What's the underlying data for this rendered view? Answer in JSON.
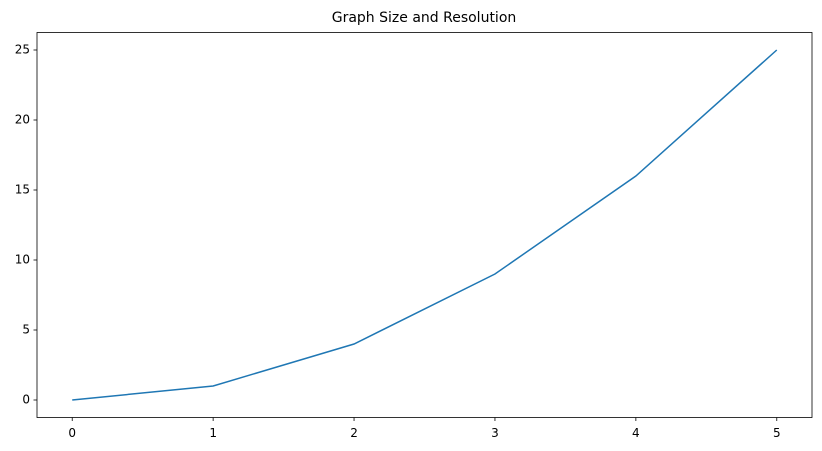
{
  "chart_data": {
    "type": "line",
    "title": "Graph Size and Resolution",
    "x": [
      0,
      1,
      2,
      3,
      4,
      5
    ],
    "values": [
      0,
      1,
      4,
      9,
      16,
      25
    ],
    "color": "#1f77b4",
    "xlim": [
      -0.25,
      5.25
    ],
    "xticks": [
      0,
      1,
      2,
      3,
      4,
      5
    ],
    "ylim": [
      -1.25,
      26.25
    ],
    "yticks": [
      0,
      5,
      10,
      15,
      20,
      25
    ],
    "grid": false
  }
}
